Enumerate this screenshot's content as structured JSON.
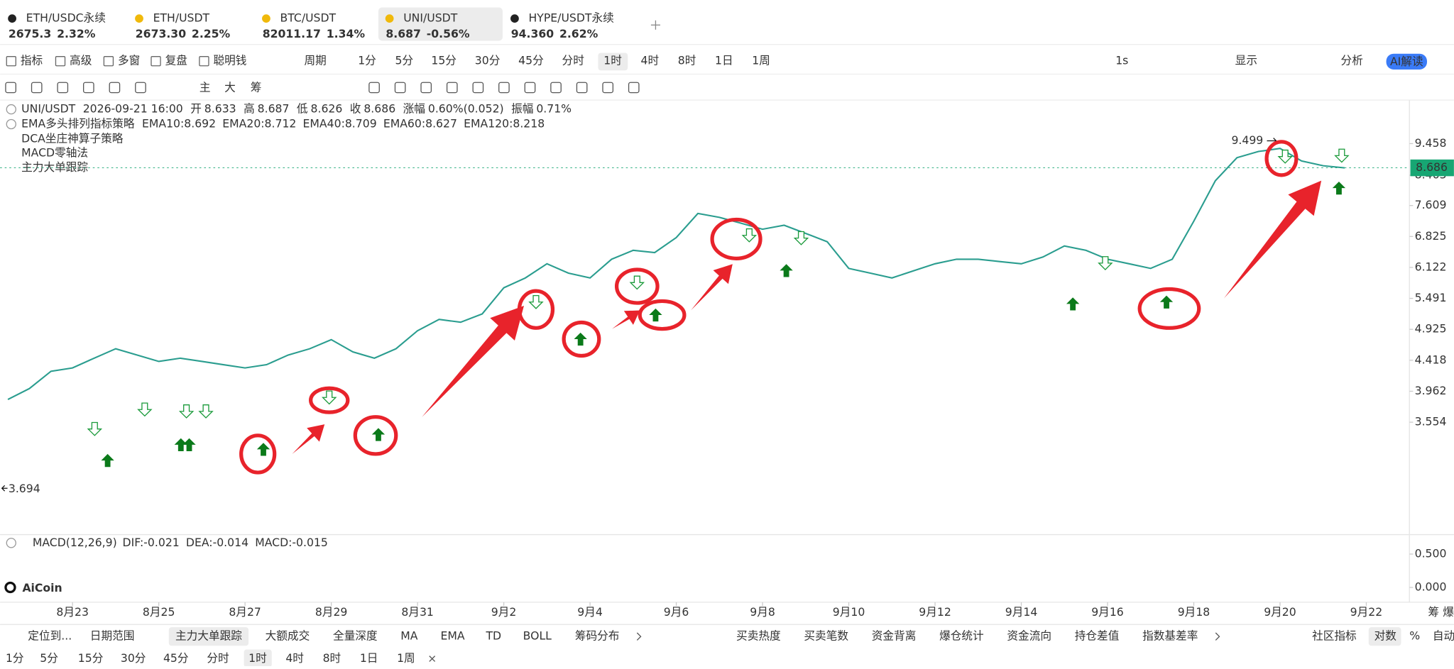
{
  "tabs": [
    {
      "symbol": "ETH/USDC永续",
      "price": "2675.3",
      "change": "2.32%",
      "color": "#17a673"
    },
    {
      "symbol": "ETH/USDT",
      "price": "2673.30",
      "change": "2.25%",
      "color": "#333333"
    },
    {
      "symbol": "BTC/USDT",
      "price": "82011.17",
      "change": "1.34%",
      "color": "#333333"
    },
    {
      "symbol": "UNI/USDT",
      "price": "8.687",
      "change": "-0.56%",
      "color": "#17a673"
    },
    {
      "symbol": "HYPE/USDT永续",
      "price": "94.360",
      "change": "2.62%",
      "color": "#e0353b"
    }
  ],
  "toolbar": {
    "tools": [
      "指标",
      "高级",
      "多窗",
      "复盘",
      "聪明钱"
    ],
    "period_label": "周期",
    "periods": [
      "1分",
      "5分",
      "15分",
      "30分",
      "45分",
      "分时",
      "1时",
      "4时",
      "8时",
      "1日",
      "1周"
    ],
    "right": [
      "1s",
      "显示",
      "分析"
    ],
    "ai": "AI解读"
  },
  "drawing_tools": [
    "主",
    "大",
    "筹"
  ],
  "chart_info": {
    "symbol": "UNI/USDT",
    "time": "2026-09-21 16:00",
    "fields": [
      {
        "label": "开",
        "value": "8.633"
      },
      {
        "label": "高",
        "value": "8.687"
      },
      {
        "label": "低",
        "value": "8.626"
      },
      {
        "label": "收",
        "value": "8.686"
      },
      {
        "label": "涨幅",
        "value": "0.60%(0.052)"
      },
      {
        "label": "振幅",
        "value": "0.71%"
      }
    ],
    "strategy": "EMA多头排列指标策略",
    "emas": [
      {
        "text": "EMA10:8.692",
        "color": "#1aa6a0"
      },
      {
        "text": "EMA20:8.712",
        "color": "#f5a623"
      },
      {
        "text": "EMA40:8.709",
        "color": "#e83e8c"
      },
      {
        "text": "EMA60:8.627",
        "color": "#2f9fd6"
      },
      {
        "text": "EMA120:8.218",
        "color": "#8bc34a"
      }
    ],
    "others": [
      "DCA坐庄神算子策略",
      "MACD零轴法",
      "主力大单跟踪"
    ]
  },
  "chart_data": {
    "type": "line",
    "log_scale": true,
    "color": "#2a9d8f",
    "grid": false,
    "x": [
      -1.5,
      -1,
      -0.5,
      0,
      0.5,
      1,
      1.5,
      2,
      2.5,
      3,
      3.5,
      4,
      4.5,
      5,
      5.5,
      6,
      6.5,
      7,
      7.5,
      8,
      8.5,
      9,
      9.5,
      10,
      10.5,
      11,
      11.5,
      12,
      12.5,
      13,
      13.5,
      14,
      14.5,
      15,
      15.5,
      16,
      16.5,
      17,
      17.5,
      18,
      18.5,
      19,
      19.5,
      20,
      20.5,
      21,
      21.5,
      22,
      22.5,
      23,
      23.5,
      24,
      24.5,
      25,
      25.5,
      26,
      26.5,
      27,
      27.5,
      28,
      28.5,
      29,
      29.5
    ],
    "values": [
      3.85,
      4.0,
      4.25,
      4.3,
      4.45,
      4.6,
      4.5,
      4.4,
      4.45,
      4.4,
      4.35,
      4.3,
      4.35,
      4.5,
      4.6,
      4.75,
      4.55,
      4.45,
      4.6,
      4.9,
      5.1,
      5.05,
      5.2,
      5.7,
      5.9,
      6.2,
      6.0,
      5.9,
      6.3,
      6.5,
      6.45,
      6.8,
      7.4,
      7.3,
      7.15,
      7.0,
      7.1,
      6.9,
      6.7,
      6.1,
      6.0,
      5.9,
      6.05,
      6.2,
      6.3,
      6.3,
      6.25,
      6.2,
      6.35,
      6.6,
      6.5,
      6.3,
      6.2,
      6.1,
      6.3,
      7.2,
      8.3,
      9.0,
      9.2,
      9.3,
      8.9,
      8.75,
      8.686
    ],
    "xlim": [
      -1.68,
      31.0
    ],
    "ylim": [
      2.41,
      10.95
    ],
    "yticks": [
      9.458,
      8.463,
      7.609,
      6.825,
      6.122,
      5.491,
      4.925,
      4.418,
      3.962,
      3.554
    ],
    "xticks": [
      {
        "value": 0,
        "label": "8月23"
      },
      {
        "value": 2,
        "label": "8月25"
      },
      {
        "value": 4,
        "label": "8月27"
      },
      {
        "value": 6,
        "label": "8月29"
      },
      {
        "value": 8,
        "label": "8月31"
      },
      {
        "value": 10,
        "label": "9月2"
      },
      {
        "value": 12,
        "label": "9月4"
      },
      {
        "value": 14,
        "label": "9月6"
      },
      {
        "value": 16,
        "label": "9月8"
      },
      {
        "value": 18,
        "label": "9月10"
      },
      {
        "value": 20,
        "label": "9月12"
      },
      {
        "value": 22,
        "label": "9月14"
      },
      {
        "value": 24,
        "label": "9月16"
      },
      {
        "value": 26,
        "label": "9月18"
      },
      {
        "value": 28,
        "label": "9月20"
      },
      {
        "value": 30,
        "label": "9月22"
      }
    ],
    "last_price": 8.686,
    "max_label": 9.499,
    "min_label": 3.694
  },
  "macd": {
    "title": "MACD(12,26,9)",
    "values": [
      {
        "text": "DIF:-0.021",
        "color": "#1aa6a0"
      },
      {
        "text": "DEA:-0.014",
        "color": "#f5a623"
      },
      {
        "text": "MACD:-0.015",
        "color": "#e0353b"
      }
    ],
    "ylim": [
      -0.194,
      0.542
    ],
    "yticks": [
      {
        "value": 0.5,
        "label": "0.500"
      },
      {
        "value": 0,
        "label": "0.000"
      }
    ]
  },
  "logo": "AiCoin",
  "side": [
    "筹",
    "爆"
  ],
  "bottom": {
    "left": [
      "定位到...",
      "日期范围"
    ],
    "indicators": [
      "主力大单跟踪",
      "大额成交",
      "全量深度",
      "MA",
      "EMA",
      "TD",
      "BOLL",
      "筹码分布"
    ],
    "indicators2": [
      "买卖热度",
      "买卖笔数",
      "资金背离",
      "爆仓统计",
      "资金流向",
      "持仓差值",
      "指数基差率"
    ],
    "right": [
      "社区指标",
      "对数",
      "%",
      "自动"
    ],
    "periods": [
      "1分",
      "5分",
      "15分",
      "30分",
      "45分",
      "分时",
      "1时",
      "4时",
      "8时",
      "1日",
      "1周"
    ]
  }
}
